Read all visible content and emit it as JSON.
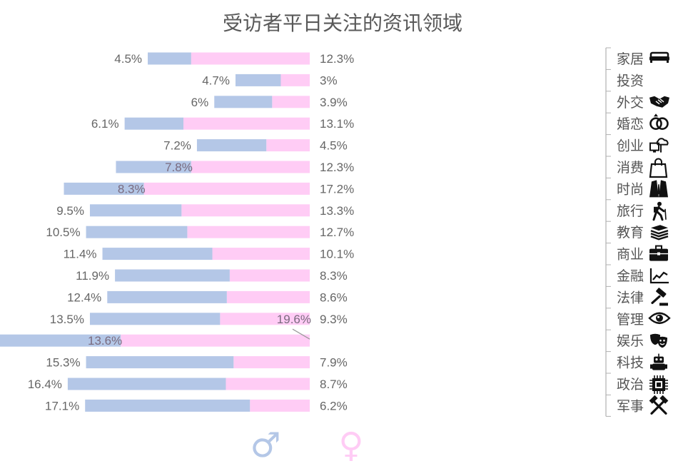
{
  "colors": {
    "male": "#b4c7e7",
    "female": "#ffccf5",
    "text": "#666666",
    "title": "#595959",
    "icon": "#111111"
  },
  "chart_data": {
    "type": "bar",
    "title": "受访者平日关注的资讯领域",
    "series": [
      {
        "name": "男",
        "symbol": "♂",
        "color": "#b4c7e7",
        "values": [
          4.5,
          4.7,
          6,
          6.1,
          7.2,
          7.8,
          8.3,
          9.5,
          10.5,
          11.4,
          11.9,
          12.4,
          13.5,
          13.6,
          15.3,
          16.4,
          17.1
        ],
        "labels": [
          "4.5%",
          "4.7%",
          "6%",
          "6.1%",
          "7.2%",
          "7.8%",
          "8.3%",
          "9.5%",
          "10.5%",
          "11.4%",
          "11.9%",
          "12.4%",
          "13.5%",
          "13.6%",
          "15.3%",
          "16.4%",
          "17.1%"
        ]
      },
      {
        "name": "女",
        "symbol": "♀",
        "color": "#ffccf5",
        "values": [
          12.3,
          3,
          3.9,
          13.1,
          4.5,
          12.3,
          17.2,
          13.3,
          12.7,
          10.1,
          8.3,
          8.6,
          9.3,
          19.6,
          7.9,
          8.7,
          6.2
        ],
        "labels": [
          "12.3%",
          "3%",
          "3.9%",
          "13.1%",
          "4.5%",
          "12.3%",
          "17.2%",
          "13.3%",
          "12.7%",
          "10.1%",
          "8.3%",
          "8.6%",
          "9.3%",
          "19.6%",
          "7.9%",
          "8.7%",
          "6.2%"
        ]
      }
    ],
    "categories": [
      "家居",
      "投资",
      "外交",
      "婚恋",
      "创业",
      "消费",
      "时尚",
      "旅行",
      "教育",
      "商业",
      "金融",
      "法律",
      "管理",
      "娱乐",
      "科技",
      "政治",
      "军事"
    ],
    "category_icons": [
      "sofa-icon",
      "",
      "handshake-icon",
      "rings-icon",
      "cloud-computer-icon",
      "shopping-bag-icon",
      "suit-icon",
      "hiker-icon",
      "books-icon",
      "briefcase-icon",
      "line-chart-icon",
      "gavel-icon",
      "eye-icon",
      "theater-masks-icon",
      "robot-icon",
      "chip-icon",
      "hammers-icon"
    ],
    "orientation": "horizontal-stacked-leftward",
    "legend": [
      "♂",
      "♀"
    ],
    "legend_position": "bottom"
  }
}
